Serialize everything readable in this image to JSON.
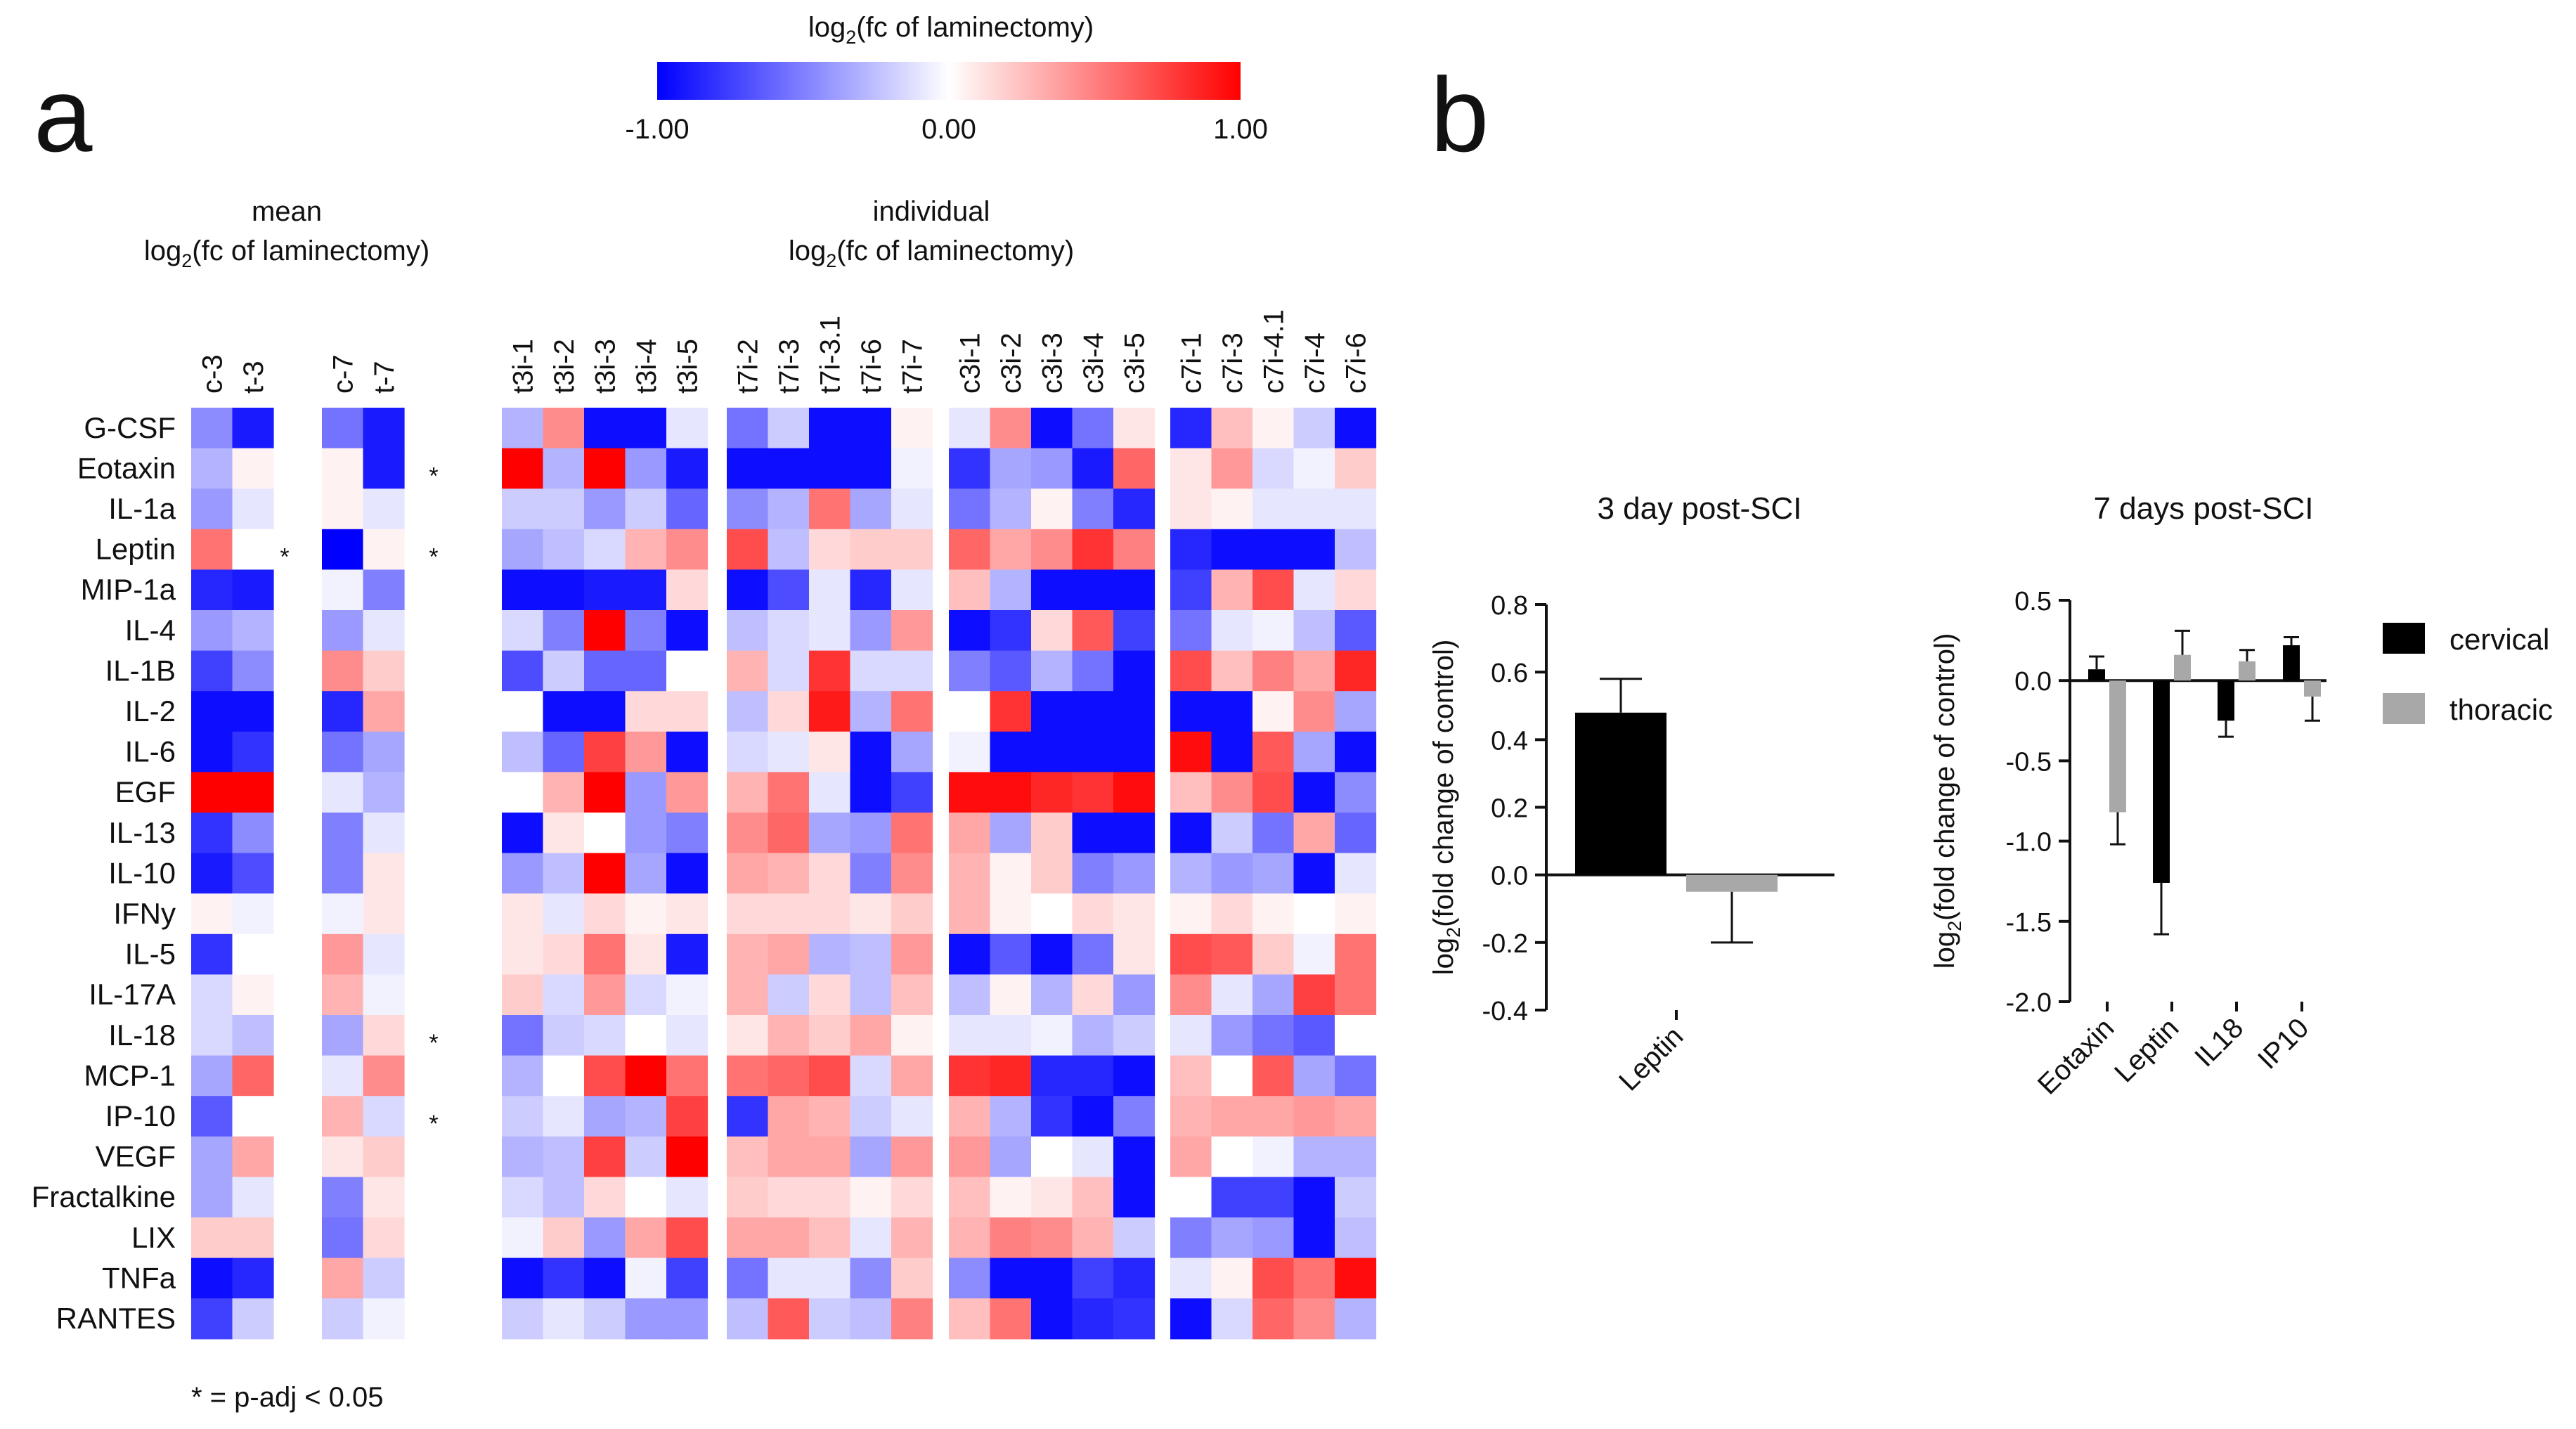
{
  "panels": {
    "a": "a",
    "b": "b"
  },
  "colorbar": {
    "title_main": "log",
    "title_sub": "2",
    "title_rest": "(fc of laminectomy)",
    "min_label": "-1.00",
    "mid_label": "0.00",
    "max_label": "1.00",
    "min_color": "#0000ff",
    "mid_color": "#ffffff",
    "max_color": "#ff0000"
  },
  "heatmap_headers": {
    "mean_line1": "mean",
    "mean_line2": "(fc of laminectomy)",
    "individual_line1": "individual",
    "individual_line2": "(fc of laminectomy)",
    "log": "log",
    "sub": "2"
  },
  "footnote": "* = p-adj < 0.05",
  "chart_data": [
    {
      "type": "heatmap",
      "title": "mean log2(fc of laminectomy)",
      "value_range": [
        -1,
        1
      ],
      "rows": [
        "G-CSF",
        "Eotaxin",
        "IL-1a",
        "Leptin",
        "MIP-1a",
        "IL-4",
        "IL-1B",
        "IL-2",
        "IL-6",
        "EGF",
        "IL-13",
        "IL-10",
        "IFNy",
        "IL-5",
        "IL-17A",
        "IL-18",
        "MCP-1",
        "IP-10",
        "VEGF",
        "Fractalkine",
        "LIX",
        "TNFa",
        "RANTES"
      ],
      "groups": [
        {
          "columns": [
            "c-3",
            "t-3"
          ],
          "values": [
            [
              -0.45,
              -0.9
            ],
            [
              -0.3,
              0.05
            ],
            [
              -0.4,
              -0.1
            ],
            [
              0.55,
              0.0
            ],
            [
              -0.85,
              -0.9
            ],
            [
              -0.4,
              -0.3
            ],
            [
              -0.75,
              -0.45
            ],
            [
              -0.95,
              -0.95
            ],
            [
              -0.95,
              -0.8
            ],
            [
              1.0,
              1.0
            ],
            [
              -0.8,
              -0.45
            ],
            [
              -0.9,
              -0.7
            ],
            [
              0.05,
              -0.05
            ],
            [
              -0.8,
              0.0
            ],
            [
              -0.15,
              0.05
            ],
            [
              -0.15,
              -0.25
            ],
            [
              -0.35,
              0.6
            ],
            [
              -0.65,
              0.0
            ],
            [
              -0.35,
              0.35
            ],
            [
              -0.35,
              -0.1
            ],
            [
              0.2,
              0.2
            ],
            [
              -0.95,
              -0.85
            ],
            [
              -0.75,
              -0.2
            ]
          ]
        },
        {
          "columns": [
            "c-7",
            "t-7"
          ],
          "values": [
            [
              -0.55,
              -0.9
            ],
            [
              0.05,
              -0.9
            ],
            [
              0.05,
              -0.1
            ],
            [
              -1.0,
              0.05
            ],
            [
              -0.05,
              -0.5
            ],
            [
              -0.4,
              -0.1
            ],
            [
              0.45,
              0.2
            ],
            [
              -0.85,
              0.35
            ],
            [
              -0.55,
              -0.35
            ],
            [
              -0.1,
              -0.3
            ],
            [
              -0.5,
              -0.1
            ],
            [
              -0.5,
              0.1
            ],
            [
              -0.05,
              0.1
            ],
            [
              0.4,
              -0.1
            ],
            [
              0.3,
              -0.05
            ],
            [
              -0.35,
              0.15
            ],
            [
              -0.1,
              0.45
            ],
            [
              0.3,
              -0.15
            ],
            [
              0.1,
              0.2
            ],
            [
              -0.5,
              0.1
            ],
            [
              -0.55,
              0.15
            ],
            [
              0.35,
              -0.2
            ],
            [
              -0.2,
              -0.05
            ]
          ]
        }
      ],
      "significance": {
        "Eotaxin": [
          "",
          "*"
        ],
        "Leptin": [
          "*",
          "*"
        ],
        "IL-18": [
          "",
          "*"
        ],
        "IP-10": [
          "",
          "*"
        ]
      }
    },
    {
      "type": "heatmap",
      "title": "individual log2(fc of laminectomy)",
      "value_range": [
        -1,
        1
      ],
      "groups": [
        {
          "columns": [
            "t3i-1",
            "t3i-2",
            "t3i-3",
            "t3i-4",
            "t3i-5"
          ],
          "values": [
            [
              -0.3,
              0.45,
              -0.95,
              -0.95,
              -0.1
            ],
            [
              1.0,
              -0.3,
              1.0,
              -0.4,
              -0.9
            ],
            [
              -0.2,
              -0.2,
              -0.4,
              -0.2,
              -0.6
            ],
            [
              -0.35,
              -0.25,
              -0.15,
              0.3,
              0.45
            ],
            [
              -0.95,
              -0.95,
              -0.9,
              -0.9,
              0.15
            ],
            [
              -0.15,
              -0.5,
              1.0,
              -0.5,
              -0.95
            ],
            [
              -0.7,
              -0.2,
              -0.6,
              -0.6,
              0.0
            ],
            [
              0.0,
              -0.95,
              -0.95,
              0.15,
              0.15
            ],
            [
              -0.25,
              -0.6,
              0.75,
              0.4,
              -0.95
            ],
            [
              0.0,
              0.3,
              1.0,
              -0.4,
              0.4
            ],
            [
              -0.95,
              0.1,
              0.0,
              -0.4,
              -0.5
            ],
            [
              -0.4,
              -0.25,
              1.0,
              -0.35,
              -0.95
            ],
            [
              0.1,
              -0.1,
              0.15,
              0.05,
              0.1
            ],
            [
              0.1,
              0.15,
              0.55,
              0.1,
              -0.9
            ],
            [
              0.2,
              -0.15,
              0.4,
              -0.15,
              -0.05
            ],
            [
              -0.55,
              -0.2,
              -0.15,
              0.0,
              -0.1
            ],
            [
              -0.3,
              0.0,
              0.7,
              1.0,
              0.55
            ],
            [
              -0.2,
              -0.1,
              -0.35,
              -0.3,
              0.75
            ],
            [
              -0.3,
              -0.25,
              0.75,
              -0.2,
              1.0
            ],
            [
              -0.15,
              -0.25,
              0.15,
              0.0,
              -0.1
            ],
            [
              -0.05,
              0.2,
              -0.4,
              0.35,
              0.7
            ],
            [
              -0.95,
              -0.8,
              -0.95,
              -0.05,
              -0.75
            ],
            [
              -0.2,
              -0.1,
              -0.2,
              -0.4,
              -0.4
            ]
          ]
        },
        {
          "columns": [
            "t7i-2",
            "t7i-3",
            "t7i-3.1",
            "t7i-6",
            "t7i-7"
          ],
          "values": [
            [
              -0.55,
              -0.2,
              -0.95,
              -0.95,
              0.05
            ],
            [
              -0.95,
              -0.95,
              -0.95,
              -0.95,
              -0.05
            ],
            [
              -0.45,
              -0.3,
              0.55,
              -0.35,
              -0.1
            ],
            [
              0.7,
              -0.25,
              0.15,
              0.2,
              0.2
            ],
            [
              -0.95,
              -0.7,
              -0.1,
              -0.85,
              -0.1
            ],
            [
              -0.25,
              -0.15,
              -0.1,
              -0.4,
              0.4
            ],
            [
              0.3,
              -0.15,
              0.8,
              -0.15,
              -0.15
            ],
            [
              -0.25,
              0.15,
              0.9,
              -0.3,
              0.55
            ],
            [
              -0.15,
              -0.1,
              0.1,
              -0.95,
              -0.35
            ],
            [
              0.3,
              0.55,
              -0.1,
              -0.95,
              -0.75
            ],
            [
              0.45,
              0.6,
              -0.35,
              -0.4,
              0.55
            ],
            [
              0.35,
              0.3,
              0.15,
              -0.5,
              0.45
            ],
            [
              0.15,
              0.15,
              0.15,
              0.1,
              0.2
            ],
            [
              0.3,
              0.35,
              -0.3,
              -0.25,
              0.4
            ],
            [
              0.3,
              -0.2,
              0.15,
              -0.25,
              0.25
            ],
            [
              0.1,
              0.3,
              0.2,
              0.35,
              0.05
            ],
            [
              0.55,
              0.6,
              0.7,
              -0.15,
              0.35
            ],
            [
              -0.8,
              0.35,
              0.3,
              -0.2,
              -0.1
            ],
            [
              0.25,
              0.35,
              0.35,
              -0.35,
              0.4
            ],
            [
              0.2,
              0.15,
              0.15,
              0.05,
              0.15
            ],
            [
              0.35,
              0.35,
              0.25,
              -0.1,
              0.3
            ],
            [
              -0.55,
              -0.1,
              -0.1,
              -0.45,
              0.2
            ],
            [
              -0.25,
              0.65,
              -0.2,
              -0.25,
              0.5
            ]
          ]
        },
        {
          "columns": [
            "c3i-1",
            "c3i-2",
            "c3i-3",
            "c3i-4",
            "c3i-5"
          ],
          "values": [
            [
              -0.1,
              0.45,
              -0.95,
              -0.55,
              0.1
            ],
            [
              -0.8,
              -0.35,
              -0.4,
              -0.9,
              0.6
            ],
            [
              -0.55,
              -0.3,
              0.05,
              -0.5,
              -0.85
            ],
            [
              0.6,
              0.35,
              0.45,
              0.8,
              0.5
            ],
            [
              0.25,
              -0.3,
              -0.95,
              -0.95,
              -0.95
            ],
            [
              -0.95,
              -0.8,
              0.15,
              0.65,
              -0.75
            ],
            [
              -0.5,
              -0.65,
              -0.3,
              -0.55,
              -0.95
            ],
            [
              0.0,
              0.8,
              -0.95,
              -0.95,
              -0.95
            ],
            [
              -0.05,
              -0.95,
              -0.95,
              -0.95,
              -0.95
            ],
            [
              0.95,
              0.95,
              0.85,
              0.8,
              0.95
            ],
            [
              0.35,
              -0.35,
              0.2,
              -0.95,
              -0.95
            ],
            [
              0.3,
              0.05,
              0.2,
              -0.5,
              -0.4
            ],
            [
              0.3,
              0.05,
              0.0,
              0.15,
              0.1
            ],
            [
              -0.95,
              -0.65,
              -0.95,
              -0.55,
              0.1
            ],
            [
              -0.25,
              0.05,
              -0.3,
              0.15,
              -0.4
            ],
            [
              -0.1,
              -0.1,
              -0.05,
              -0.3,
              -0.2
            ],
            [
              0.8,
              0.85,
              -0.85,
              -0.85,
              -0.95
            ],
            [
              0.3,
              -0.3,
              -0.8,
              -0.95,
              -0.5
            ],
            [
              0.4,
              -0.35,
              0.0,
              -0.1,
              -0.95
            ],
            [
              0.25,
              0.05,
              0.1,
              0.25,
              -0.95
            ],
            [
              0.3,
              0.5,
              0.45,
              0.3,
              -0.2
            ],
            [
              -0.45,
              -0.95,
              -0.95,
              -0.75,
              -0.85
            ],
            [
              0.25,
              0.55,
              -0.95,
              -0.85,
              -0.8
            ]
          ]
        },
        {
          "columns": [
            "c7i-1",
            "c7i-3",
            "c7i-4.1",
            "c7i-4",
            "c7i-6"
          ],
          "values": [
            [
              -0.85,
              0.25,
              0.05,
              -0.2,
              -0.95
            ],
            [
              0.1,
              0.4,
              -0.15,
              -0.05,
              0.2
            ],
            [
              0.1,
              0.05,
              -0.1,
              -0.1,
              -0.1
            ],
            [
              -0.85,
              -0.95,
              -0.95,
              -0.95,
              -0.25
            ],
            [
              -0.75,
              0.3,
              0.7,
              -0.1,
              0.15
            ],
            [
              -0.55,
              -0.1,
              -0.05,
              -0.25,
              -0.65
            ],
            [
              0.7,
              0.25,
              0.5,
              0.35,
              0.85
            ],
            [
              -0.95,
              -0.95,
              0.05,
              0.45,
              -0.35
            ],
            [
              0.95,
              -0.95,
              0.65,
              -0.35,
              -0.95
            ],
            [
              0.25,
              0.45,
              0.7,
              -0.95,
              -0.45
            ],
            [
              -0.95,
              -0.2,
              -0.55,
              0.35,
              -0.6
            ],
            [
              -0.3,
              -0.4,
              -0.35,
              -0.95,
              -0.1
            ],
            [
              0.05,
              0.15,
              0.05,
              0.0,
              0.05
            ],
            [
              0.7,
              0.65,
              0.2,
              -0.05,
              0.55
            ],
            [
              0.45,
              -0.1,
              -0.35,
              0.75,
              0.55
            ],
            [
              -0.1,
              -0.4,
              -0.55,
              -0.65,
              0.0
            ],
            [
              0.25,
              0.0,
              0.65,
              -0.35,
              -0.55
            ],
            [
              0.3,
              0.35,
              0.35,
              0.4,
              0.35
            ],
            [
              0.35,
              0.0,
              -0.05,
              -0.3,
              -0.3
            ],
            [
              0.0,
              -0.75,
              -0.75,
              -0.95,
              -0.2
            ],
            [
              -0.5,
              -0.35,
              -0.4,
              -0.95,
              -0.25
            ],
            [
              -0.1,
              0.05,
              0.7,
              0.55,
              0.95
            ],
            [
              -0.95,
              -0.15,
              0.6,
              0.45,
              -0.3
            ]
          ]
        }
      ]
    },
    {
      "type": "bar",
      "title": "3 day post-SCI",
      "ylabel_main": "log",
      "ylabel_sub": "2",
      "ylabel_rest": "(fold change of control)",
      "categories": [
        "Leptin"
      ],
      "series": [
        {
          "name": "cervical",
          "color": "#000000",
          "values": [
            0.48
          ],
          "errors": [
            0.1
          ]
        },
        {
          "name": "thoracic",
          "color": "#a8a8a8",
          "values": [
            -0.05
          ],
          "errors": [
            0.15
          ]
        }
      ],
      "ylim": [
        -0.4,
        0.8
      ],
      "yticks": [
        "-0.4",
        "-0.2",
        "0.0",
        "0.2",
        "0.4",
        "0.6",
        "0.8"
      ]
    },
    {
      "type": "bar",
      "title": "7 days post-SCI",
      "ylabel_main": "log",
      "ylabel_sub": "2",
      "ylabel_rest": "(fold change of control)",
      "categories": [
        "Eotaxin",
        "Leptin",
        "IL18",
        "IP10"
      ],
      "series": [
        {
          "name": "cervical",
          "color": "#000000",
          "values": [
            0.07,
            -1.26,
            -0.25,
            0.22
          ],
          "errors": [
            0.08,
            0.32,
            0.1,
            0.05
          ]
        },
        {
          "name": "thoracic",
          "color": "#a8a8a8",
          "values": [
            -0.82,
            0.16,
            0.12,
            -0.1
          ],
          "errors": [
            0.2,
            0.15,
            0.07,
            0.15
          ]
        }
      ],
      "ylim": [
        -2.0,
        0.5
      ],
      "yticks": [
        "-2.0",
        "-1.5",
        "-1.0",
        "-0.5",
        "0.0",
        "0.5"
      ],
      "legend": [
        "cervical",
        "thoracic"
      ]
    }
  ]
}
